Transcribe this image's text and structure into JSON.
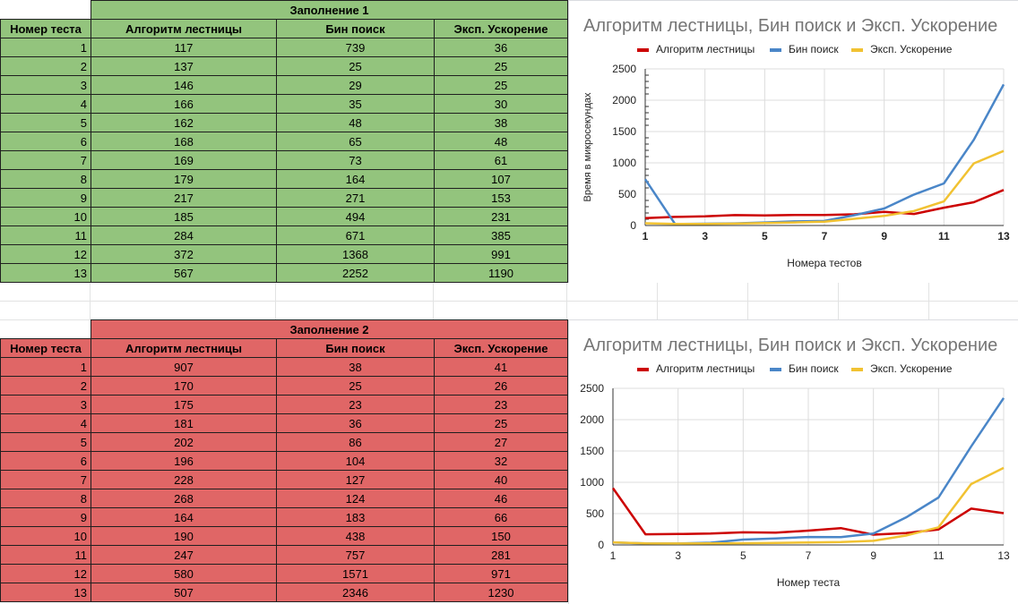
{
  "colors": {
    "fill1": "#93c47d",
    "fill2": "#e06666",
    "red": "#cc0000",
    "blue": "#4a86c8",
    "yellow": "#f1c232"
  },
  "table1": {
    "title": "Заполнение 1",
    "headers": [
      "Номер теста",
      "Алгоритм лестницы",
      "Бин поиск",
      "Эксп. Ускорение"
    ],
    "rows": [
      [
        "1",
        "117",
        "739",
        "36"
      ],
      [
        "2",
        "137",
        "25",
        "25"
      ],
      [
        "3",
        "146",
        "29",
        "25"
      ],
      [
        "4",
        "166",
        "35",
        "30"
      ],
      [
        "5",
        "162",
        "48",
        "38"
      ],
      [
        "6",
        "168",
        "65",
        "48"
      ],
      [
        "7",
        "169",
        "73",
        "61"
      ],
      [
        "8",
        "179",
        "164",
        "107"
      ],
      [
        "9",
        "217",
        "271",
        "153"
      ],
      [
        "10",
        "185",
        "494",
        "231"
      ],
      [
        "11",
        "284",
        "671",
        "385"
      ],
      [
        "12",
        "372",
        "1368",
        "991"
      ],
      [
        "13",
        "567",
        "2252",
        "1190"
      ]
    ]
  },
  "table2": {
    "title": "Заполнение 2",
    "headers": [
      "Номер теста",
      "Алгоритм лестницы",
      "Бин поиск",
      "Эксп. Ускорение"
    ],
    "rows": [
      [
        "1",
        "907",
        "38",
        "41"
      ],
      [
        "2",
        "170",
        "25",
        "26"
      ],
      [
        "3",
        "175",
        "23",
        "23"
      ],
      [
        "4",
        "181",
        "36",
        "25"
      ],
      [
        "5",
        "202",
        "86",
        "27"
      ],
      [
        "6",
        "196",
        "104",
        "32"
      ],
      [
        "7",
        "228",
        "127",
        "40"
      ],
      [
        "8",
        "268",
        "124",
        "46"
      ],
      [
        "9",
        "164",
        "183",
        "66"
      ],
      [
        "10",
        "190",
        "438",
        "150"
      ],
      [
        "11",
        "247",
        "757",
        "281"
      ],
      [
        "12",
        "580",
        "1571",
        "971"
      ],
      [
        "13",
        "507",
        "2346",
        "1230"
      ]
    ]
  },
  "chart_data": [
    {
      "type": "line",
      "title": "Алгоритм лестницы, Бин поиск и Эксп. Ускорение",
      "xlabel": "Номера тестов",
      "ylabel": "Время в микросекундах",
      "legend_position": "top",
      "ylim": [
        0,
        2500
      ],
      "yticks": [
        "0",
        "500",
        "1000",
        "1500",
        "2000",
        "2500"
      ],
      "xticks": [
        "1",
        "3",
        "5",
        "7",
        "9",
        "11",
        "13"
      ],
      "grid": true,
      "x": [
        1,
        2,
        3,
        4,
        5,
        6,
        7,
        8,
        9,
        10,
        11,
        12,
        13
      ],
      "series": [
        {
          "name": "Алгоритм лестницы",
          "color": "#cc0000",
          "values": [
            117,
            137,
            146,
            166,
            162,
            168,
            169,
            179,
            217,
            185,
            284,
            372,
            567
          ]
        },
        {
          "name": "Бин поиск",
          "color": "#4a86c8",
          "values": [
            739,
            25,
            29,
            35,
            48,
            65,
            73,
            164,
            271,
            494,
            671,
            1368,
            2252
          ]
        },
        {
          "name": "Эксп. Ускорение",
          "color": "#f1c232",
          "values": [
            36,
            25,
            25,
            30,
            38,
            48,
            61,
            107,
            153,
            231,
            385,
            991,
            1190
          ]
        }
      ]
    },
    {
      "type": "line",
      "title": "Алгоритм лестницы, Бин поиск и Эксп. Ускорение",
      "xlabel": "Номер теста",
      "ylabel": "",
      "legend_position": "top",
      "ylim": [
        0,
        2500
      ],
      "yticks": [
        "0",
        "500",
        "1000",
        "1500",
        "2000",
        "2500"
      ],
      "xticks": [
        "1",
        "3",
        "5",
        "7",
        "9",
        "11",
        "13"
      ],
      "grid": true,
      "x": [
        1,
        2,
        3,
        4,
        5,
        6,
        7,
        8,
        9,
        10,
        11,
        12,
        13
      ],
      "series": [
        {
          "name": "Алгоритм лестницы",
          "color": "#cc0000",
          "values": [
            907,
            170,
            175,
            181,
            202,
            196,
            228,
            268,
            164,
            190,
            247,
            580,
            507
          ]
        },
        {
          "name": "Бин поиск",
          "color": "#4a86c8",
          "values": [
            38,
            25,
            23,
            36,
            86,
            104,
            127,
            124,
            183,
            438,
            757,
            1571,
            2346
          ]
        },
        {
          "name": "Эксп. Ускорение",
          "color": "#f1c232",
          "values": [
            41,
            26,
            23,
            25,
            27,
            32,
            40,
            46,
            66,
            150,
            281,
            971,
            1230
          ]
        }
      ]
    }
  ]
}
